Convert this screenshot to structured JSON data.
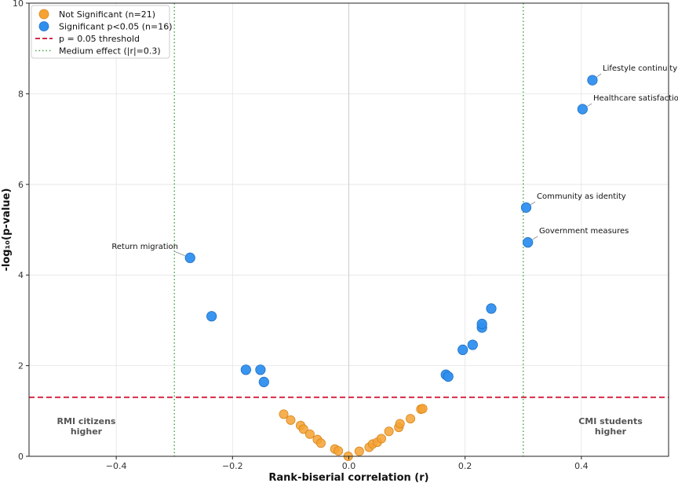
{
  "chart_data": {
    "type": "scatter",
    "xlabel": "Rank-biserial correlation (r)",
    "ylabel": "-log₁₀(p-value)",
    "xlim": [
      -0.55,
      0.55
    ],
    "ylim": [
      0,
      10
    ],
    "x_ticks": [
      -0.4,
      -0.2,
      0.0,
      0.2,
      0.4
    ],
    "x_tick_labels": [
      "−0.4",
      "−0.2",
      "0.0",
      "0.2",
      "0.4"
    ],
    "y_ticks": [
      0,
      2,
      4,
      6,
      8,
      10
    ],
    "y_tick_labels": [
      "0",
      "2",
      "4",
      "6",
      "8",
      "10"
    ],
    "grid": true,
    "legend_position": "top-left",
    "series": [
      {
        "name": "Not Significant (n=21)",
        "color": "#f5a233",
        "points": [
          {
            "x": -0.112,
            "y": 0.93
          },
          {
            "x": -0.1,
            "y": 0.8
          },
          {
            "x": -0.083,
            "y": 0.68
          },
          {
            "x": -0.078,
            "y": 0.6
          },
          {
            "x": -0.067,
            "y": 0.49
          },
          {
            "x": -0.054,
            "y": 0.37
          },
          {
            "x": -0.048,
            "y": 0.29
          },
          {
            "x": -0.024,
            "y": 0.16
          },
          {
            "x": -0.018,
            "y": 0.12
          },
          {
            "x": -0.001,
            "y": 0.0
          },
          {
            "x": 0.018,
            "y": 0.11
          },
          {
            "x": 0.035,
            "y": 0.2
          },
          {
            "x": 0.041,
            "y": 0.27
          },
          {
            "x": 0.049,
            "y": 0.31
          },
          {
            "x": 0.056,
            "y": 0.39
          },
          {
            "x": 0.069,
            "y": 0.55
          },
          {
            "x": 0.086,
            "y": 0.64
          },
          {
            "x": 0.088,
            "y": 0.72
          },
          {
            "x": 0.106,
            "y": 0.83
          },
          {
            "x": 0.124,
            "y": 1.04
          },
          {
            "x": 0.127,
            "y": 1.05
          }
        ]
      },
      {
        "name": "Significant p<0.05 (n=16)",
        "color": "#2e8fee",
        "points": [
          {
            "x": -0.273,
            "y": 4.38
          },
          {
            "x": -0.236,
            "y": 3.09
          },
          {
            "x": -0.177,
            "y": 1.91
          },
          {
            "x": -0.152,
            "y": 1.91
          },
          {
            "x": -0.146,
            "y": 1.64
          },
          {
            "x": 0.167,
            "y": 1.8
          },
          {
            "x": 0.171,
            "y": 1.76
          },
          {
            "x": 0.196,
            "y": 2.35
          },
          {
            "x": 0.213,
            "y": 2.46
          },
          {
            "x": 0.229,
            "y": 2.84
          },
          {
            "x": 0.229,
            "y": 2.92
          },
          {
            "x": 0.245,
            "y": 3.26
          },
          {
            "x": 0.305,
            "y": 5.49
          },
          {
            "x": 0.308,
            "y": 4.72
          },
          {
            "x": 0.402,
            "y": 7.66
          },
          {
            "x": 0.419,
            "y": 8.3
          }
        ]
      }
    ],
    "reference_lines": [
      {
        "name": "p = 0.05 threshold",
        "orientation": "horizontal",
        "value": 1.301,
        "color": "#d62a45",
        "style": "dashed"
      },
      {
        "name": "Medium effect (|r|=0.3)",
        "orientation": "vertical",
        "values": [
          -0.3,
          0.3
        ],
        "color": "#4aa84a",
        "style": "dotted"
      }
    ],
    "annotations": [
      {
        "text": "Lifestyle continuity",
        "x": 0.419,
        "y": 8.3
      },
      {
        "text": "Healthcare satisfaction",
        "x": 0.402,
        "y": 7.66
      },
      {
        "text": "Community as identity",
        "x": 0.305,
        "y": 5.49
      },
      {
        "text": "Government measures",
        "x": 0.308,
        "y": 4.72
      },
      {
        "text": "Return migration",
        "x": -0.273,
        "y": 4.38
      }
    ],
    "region_labels": [
      {
        "lines": [
          "RMI citizens",
          "higher"
        ],
        "side": "left"
      },
      {
        "lines": [
          "CMI students",
          "higher"
        ],
        "side": "right"
      }
    ]
  }
}
